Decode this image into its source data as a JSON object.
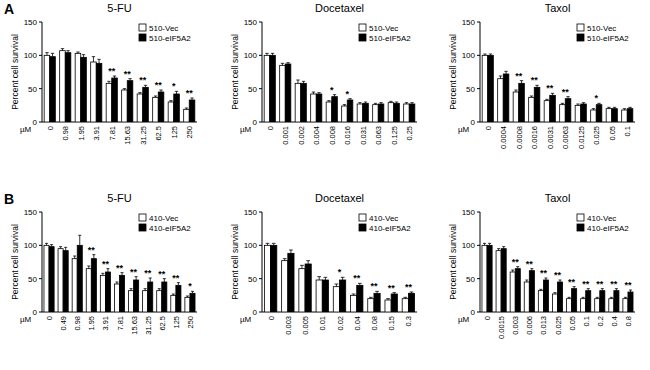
{
  "chart_data": [
    {
      "type": "bar",
      "panel": "A",
      "title": "5-FU",
      "x_label": "µM",
      "y_label": "Percent cell survival",
      "categories": [
        "0",
        "0.98",
        "1.95",
        "3.91",
        "7.81",
        "15.63",
        "31.25",
        "62.5",
        "125",
        "250"
      ],
      "series": [
        {
          "name": "510-Vec",
          "color": "#ffffff",
          "values": [
            100,
            107,
            103,
            90,
            58,
            48,
            42,
            37,
            30,
            19
          ],
          "errors": [
            4,
            3,
            2,
            8,
            3,
            2,
            2,
            2,
            2,
            2
          ]
        },
        {
          "name": "510-eIF5A2",
          "color": "#000000",
          "values": [
            98,
            104,
            97,
            88,
            66,
            62,
            52,
            45,
            42,
            33
          ],
          "errors": [
            5,
            3,
            4,
            6,
            3,
            3,
            3,
            3,
            4,
            3
          ]
        }
      ],
      "ylim": [
        0,
        150
      ],
      "yticks": [
        0,
        50,
        100,
        150
      ],
      "legend": "upper right",
      "annotations": [
        {
          "category": "7.81",
          "text": "**"
        },
        {
          "category": "15.63",
          "text": "**"
        },
        {
          "category": "31.25",
          "text": "**"
        },
        {
          "category": "62.5",
          "text": "**"
        },
        {
          "category": "125",
          "text": "*"
        },
        {
          "category": "250",
          "text": "**"
        }
      ]
    },
    {
      "type": "bar",
      "title": "Docetaxel",
      "x_label": "µM",
      "y_label": "Percent cell survival",
      "categories": [
        "0",
        "0.001",
        "0.002",
        "0.004",
        "0.008",
        "0.016",
        "0.031",
        "0.063",
        "0.125",
        "0.25"
      ],
      "series": [
        {
          "name": "510-Vec",
          "color": "#ffffff",
          "values": [
            100,
            85,
            58,
            42,
            30,
            24,
            27,
            26,
            29,
            27
          ],
          "errors": [
            3,
            3,
            5,
            3,
            2,
            2,
            2,
            2,
            2,
            2
          ]
        },
        {
          "name": "510-eIF5A2",
          "color": "#000000",
          "values": [
            100,
            87,
            58,
            42,
            38,
            33,
            28,
            27,
            28,
            27
          ],
          "errors": [
            3,
            2,
            3,
            2,
            3,
            2,
            2,
            2,
            2,
            2
          ]
        }
      ],
      "ylim": [
        0,
        150
      ],
      "yticks": [
        0,
        50,
        100,
        150
      ],
      "legend": "upper right",
      "annotations": [
        {
          "category": "0.008",
          "text": "*"
        },
        {
          "category": "0.016",
          "text": "*"
        }
      ]
    },
    {
      "type": "bar",
      "title": "Taxol",
      "x_label": "µM",
      "y_label": "Percent cell survival",
      "categories": [
        "0",
        "0.0004",
        "0.0008",
        "0.0016",
        "0.0031",
        "0.0063",
        "0.0125",
        "0.025",
        "0.05",
        "0.1"
      ],
      "series": [
        {
          "name": "510-Vec",
          "color": "#ffffff",
          "values": [
            100,
            65,
            45,
            37,
            32,
            26,
            25,
            18,
            20,
            18
          ],
          "errors": [
            2,
            4,
            3,
            2,
            2,
            2,
            2,
            2,
            2,
            2
          ]
        },
        {
          "name": "510-eIF5A2",
          "color": "#000000",
          "values": [
            100,
            72,
            58,
            52,
            40,
            35,
            27,
            26,
            20,
            20
          ],
          "errors": [
            2,
            4,
            4,
            3,
            3,
            3,
            2,
            2,
            2,
            2
          ]
        }
      ],
      "ylim": [
        0,
        150
      ],
      "yticks": [
        0,
        50,
        100,
        150
      ],
      "legend": "upper right",
      "annotations": [
        {
          "category": "0.0008",
          "text": "**"
        },
        {
          "category": "0.0016",
          "text": "**"
        },
        {
          "category": "0.0031",
          "text": "**"
        },
        {
          "category": "0.0063",
          "text": "**"
        },
        {
          "category": "0.025",
          "text": "*"
        }
      ]
    },
    {
      "type": "bar",
      "panel": "B",
      "title": "5-FU",
      "x_label": "µM",
      "y_label": "Percent cell survival",
      "categories": [
        "0",
        "0.49",
        "0.98",
        "1.95",
        "3.91",
        "7.81",
        "15.63",
        "31.25",
        "62.5",
        "125",
        "250"
      ],
      "series": [
        {
          "name": "410-Vec",
          "color": "#ffffff",
          "values": [
            100,
            95,
            80,
            65,
            55,
            42,
            32,
            32,
            32,
            25,
            22
          ],
          "errors": [
            3,
            3,
            4,
            4,
            3,
            3,
            3,
            3,
            3,
            2,
            2
          ]
        },
        {
          "name": "410-eIF5A2",
          "color": "#000000",
          "values": [
            98,
            92,
            100,
            80,
            60,
            55,
            48,
            45,
            45,
            40,
            28
          ],
          "errors": [
            3,
            5,
            15,
            6,
            5,
            4,
            5,
            6,
            5,
            4,
            3
          ]
        }
      ],
      "ylim": [
        0,
        150
      ],
      "yticks": [
        0,
        50,
        100,
        150
      ],
      "legend": "upper right",
      "annotations": [
        {
          "category": "1.95",
          "text": "**"
        },
        {
          "category": "3.91",
          "text": "**"
        },
        {
          "category": "7.81",
          "text": "**"
        },
        {
          "category": "15.63",
          "text": "**"
        },
        {
          "category": "31.25",
          "text": "**"
        },
        {
          "category": "62.5",
          "text": "**"
        },
        {
          "category": "125",
          "text": "**"
        },
        {
          "category": "250",
          "text": "*"
        }
      ]
    },
    {
      "type": "bar",
      "title": "Docetaxel",
      "x_label": "µM",
      "y_label": "Percent cell survival",
      "categories": [
        "0",
        "0.003",
        "0.005",
        "0.01",
        "0.02",
        "0.04",
        "0.08",
        "0.15",
        "0.3"
      ],
      "series": [
        {
          "name": "410-Vec",
          "color": "#ffffff",
          "values": [
            100,
            77,
            65,
            48,
            38,
            25,
            20,
            18,
            20
          ],
          "errors": [
            3,
            3,
            5,
            5,
            4,
            2,
            2,
            2,
            2
          ]
        },
        {
          "name": "410-eIF5A2",
          "color": "#000000",
          "values": [
            100,
            88,
            72,
            48,
            48,
            40,
            28,
            27,
            28
          ],
          "errors": [
            3,
            5,
            5,
            4,
            4,
            3,
            3,
            2,
            2
          ]
        }
      ],
      "ylim": [
        0,
        150
      ],
      "yticks": [
        0,
        50,
        100,
        150
      ],
      "legend": "upper right",
      "annotations": [
        {
          "category": "0.02",
          "text": "*"
        },
        {
          "category": "0.04",
          "text": "**"
        },
        {
          "category": "0.08",
          "text": "**"
        },
        {
          "category": "0.15",
          "text": "**"
        },
        {
          "category": "0.3",
          "text": "**"
        }
      ]
    },
    {
      "type": "bar",
      "title": "Taxol",
      "x_label": "µM",
      "y_label": "Percent cell survival",
      "categories": [
        "0",
        "0.0015",
        "0.003",
        "0.006",
        "0.013",
        "0.025",
        "0.05",
        "0.1",
        "0.2",
        "0.4",
        "0.8"
      ],
      "series": [
        {
          "name": "410-Vec",
          "color": "#ffffff",
          "values": [
            100,
            92,
            60,
            45,
            32,
            27,
            20,
            20,
            20,
            20,
            20
          ],
          "errors": [
            3,
            3,
            3,
            3,
            2,
            2,
            2,
            2,
            2,
            2,
            2
          ]
        },
        {
          "name": "410-eIF5A2",
          "color": "#000000",
          "values": [
            100,
            95,
            65,
            62,
            48,
            45,
            35,
            32,
            32,
            32,
            30
          ],
          "errors": [
            3,
            3,
            3,
            3,
            3,
            3,
            3,
            3,
            3,
            3,
            3
          ]
        }
      ],
      "ylim": [
        0,
        150
      ],
      "yticks": [
        0,
        50,
        100,
        150
      ],
      "legend": "upper right",
      "annotations": [
        {
          "category": "0.003",
          "text": "**"
        },
        {
          "category": "0.006",
          "text": "**"
        },
        {
          "category": "0.013",
          "text": "**"
        },
        {
          "category": "0.025",
          "text": "**"
        },
        {
          "category": "0.05",
          "text": "**"
        },
        {
          "category": "0.1",
          "text": "**"
        },
        {
          "category": "0.2",
          "text": "**"
        },
        {
          "category": "0.4",
          "text": "**"
        },
        {
          "category": "0.8",
          "text": "**"
        }
      ]
    }
  ]
}
